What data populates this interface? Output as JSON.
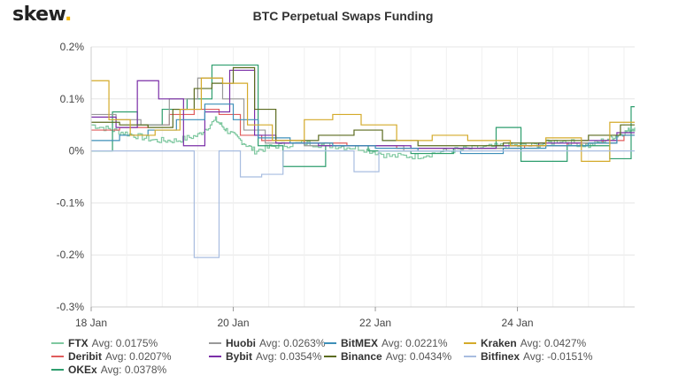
{
  "header": {
    "logo_text": "skew",
    "logo_dot": "."
  },
  "chart_data": {
    "type": "line",
    "title": "BTC Perpetual Swaps Funding",
    "x_axis": {
      "ticks": [
        "18 Jan",
        "20 Jan",
        "22 Jan",
        "24 Jan"
      ],
      "tick_days": [
        18,
        20,
        22,
        24
      ],
      "range_days": [
        18,
        25.65
      ]
    },
    "y_axis": {
      "ticks": [
        "0.2%",
        "0.1%",
        "0%",
        "-0.1%",
        "-0.2%",
        "-0.3%"
      ],
      "tick_values": [
        0.2,
        0.1,
        0,
        -0.1,
        -0.2,
        -0.3
      ],
      "ylim": [
        -0.3,
        0.2
      ],
      "unit": "%"
    },
    "grid": true,
    "legend_placement": "bottom",
    "series": [
      {
        "name": "FTX",
        "avg_label": "Avg: 0.0175%",
        "color": "#7fc8a0",
        "style": "noisy",
        "points": [
          [
            18,
            0.05
          ],
          [
            18.3,
            0.04
          ],
          [
            18.6,
            0.03
          ],
          [
            18.9,
            0.02
          ],
          [
            19.2,
            0.02
          ],
          [
            19.5,
            0.03
          ],
          [
            19.75,
            0.06
          ],
          [
            19.9,
            0.04
          ],
          [
            20.1,
            0.02
          ],
          [
            20.3,
            0.0
          ],
          [
            20.6,
            0.01
          ],
          [
            21,
            0.015
          ],
          [
            21.4,
            0.01
          ],
          [
            21.8,
            0.005
          ],
          [
            22.2,
            -0.01
          ],
          [
            22.6,
            -0.01
          ],
          [
            23,
            0.0
          ],
          [
            23.4,
            0.005
          ],
          [
            23.8,
            0.01
          ],
          [
            24.2,
            0.01
          ],
          [
            24.6,
            0.02
          ],
          [
            25,
            0.01
          ],
          [
            25.3,
            0.025
          ],
          [
            25.5,
            0.035
          ],
          [
            25.65,
            0.045
          ]
        ]
      },
      {
        "name": "Deribit",
        "avg_label": "Avg: 0.0207%",
        "color": "#e05c5c",
        "style": "step",
        "points": [
          [
            18,
            0.04
          ],
          [
            18.4,
            0.045
          ],
          [
            18.8,
            0.05
          ],
          [
            19.1,
            0.07
          ],
          [
            19.45,
            0.08
          ],
          [
            19.8,
            0.07
          ],
          [
            20.1,
            0.03
          ],
          [
            20.4,
            0.02
          ],
          [
            21,
            0.015
          ],
          [
            21.6,
            0.01
          ],
          [
            22.3,
            0.005
          ],
          [
            22.9,
            0.005
          ],
          [
            23.5,
            0.005
          ],
          [
            24.1,
            0.01
          ],
          [
            24.7,
            0.015
          ],
          [
            25.2,
            0.02
          ],
          [
            25.5,
            0.03
          ],
          [
            25.65,
            0.03
          ]
        ]
      },
      {
        "name": "OKEx",
        "avg_label": "Avg: 0.0378%",
        "color": "#2e9e6e",
        "style": "step",
        "points": [
          [
            18,
            0.0
          ],
          [
            18.3,
            0.075
          ],
          [
            18.65,
            0.05
          ],
          [
            19,
            0.08
          ],
          [
            19.35,
            0.1
          ],
          [
            19.7,
            0.165
          ],
          [
            20.05,
            0.165
          ],
          [
            20.35,
            0.01
          ],
          [
            20.7,
            -0.03
          ],
          [
            21.3,
            0.01
          ],
          [
            21.9,
            0.0
          ],
          [
            22.5,
            -0.005
          ],
          [
            23.1,
            0.005
          ],
          [
            23.7,
            0.045
          ],
          [
            24.05,
            -0.02
          ],
          [
            24.7,
            0.01
          ],
          [
            25.3,
            -0.015
          ],
          [
            25.6,
            0.085
          ],
          [
            25.65,
            0.085
          ]
        ]
      },
      {
        "name": "Huobi",
        "avg_label": "Avg: 0.0263%",
        "color": "#999999",
        "style": "step",
        "points": [
          [
            18,
            0.07
          ],
          [
            18.35,
            0.06
          ],
          [
            18.7,
            0.05
          ],
          [
            19.1,
            0.1
          ],
          [
            19.5,
            0.14
          ],
          [
            19.85,
            0.1
          ],
          [
            20.15,
            0.04
          ],
          [
            20.45,
            0.015
          ],
          [
            21,
            0.01
          ],
          [
            21.7,
            0.01
          ],
          [
            22.4,
            0.0
          ],
          [
            23,
            0.005
          ],
          [
            23.6,
            0.005
          ],
          [
            24.3,
            0.01
          ],
          [
            24.9,
            0.015
          ],
          [
            25.4,
            0.03
          ],
          [
            25.65,
            0.03
          ]
        ]
      },
      {
        "name": "Bybit",
        "avg_label": "Avg: 0.0354%",
        "color": "#7b2fa8",
        "style": "step",
        "points": [
          [
            18,
            0.065
          ],
          [
            18.35,
            0.045
          ],
          [
            18.65,
            0.135
          ],
          [
            18.95,
            0.1
          ],
          [
            19.3,
            0.01
          ],
          [
            19.6,
            0.075
          ],
          [
            19.95,
            0.155
          ],
          [
            20.3,
            0.03
          ],
          [
            20.6,
            0.015
          ],
          [
            21.2,
            0.01
          ],
          [
            21.9,
            0.01
          ],
          [
            22.5,
            0.005
          ],
          [
            23.1,
            0.005
          ],
          [
            23.7,
            0.01
          ],
          [
            24.3,
            0.015
          ],
          [
            24.9,
            0.02
          ],
          [
            25.4,
            0.035
          ],
          [
            25.65,
            0.035
          ]
        ]
      },
      {
        "name": "BitMEX",
        "avg_label": "Avg: 0.0221%",
        "color": "#3d8fb8",
        "style": "step",
        "points": [
          [
            18,
            0.02
          ],
          [
            18.4,
            0.03
          ],
          [
            18.8,
            0.04
          ],
          [
            19.2,
            0.06
          ],
          [
            19.6,
            0.09
          ],
          [
            20,
            0.06
          ],
          [
            20.35,
            0.025
          ],
          [
            20.8,
            0.015
          ],
          [
            21.4,
            0.01
          ],
          [
            22,
            0.005
          ],
          [
            22.6,
            0.0
          ],
          [
            23.2,
            -0.005
          ],
          [
            23.8,
            0.005
          ],
          [
            24.4,
            0.01
          ],
          [
            25,
            0.015
          ],
          [
            25.4,
            0.03
          ],
          [
            25.65,
            0.03
          ]
        ]
      },
      {
        "name": "Binance",
        "avg_label": "Avg: 0.0434%",
        "color": "#5b6b1f",
        "style": "step",
        "points": [
          [
            18,
            0.055
          ],
          [
            18.4,
            0.05
          ],
          [
            18.8,
            0.045
          ],
          [
            19.15,
            0.08
          ],
          [
            19.45,
            0.12
          ],
          [
            19.7,
            0.13
          ],
          [
            20.0,
            0.16
          ],
          [
            20.3,
            0.08
          ],
          [
            20.6,
            0.02
          ],
          [
            21.2,
            0.03
          ],
          [
            21.7,
            0.04
          ],
          [
            22.1,
            0.02
          ],
          [
            22.6,
            0.01
          ],
          [
            23.2,
            0.01
          ],
          [
            23.8,
            0.015
          ],
          [
            24.4,
            0.02
          ],
          [
            25,
            0.03
          ],
          [
            25.45,
            0.05
          ],
          [
            25.65,
            0.05
          ]
        ]
      },
      {
        "name": "Kraken",
        "avg_label": "Avg: 0.0427%",
        "color": "#d4aa2a",
        "style": "step",
        "points": [
          [
            18,
            0.135
          ],
          [
            18.25,
            0.06
          ],
          [
            18.55,
            0.03
          ],
          [
            18.9,
            0.04
          ],
          [
            19.25,
            0.08
          ],
          [
            19.55,
            0.14
          ],
          [
            19.85,
            0.13
          ],
          [
            20.2,
            0.05
          ],
          [
            20.55,
            0.02
          ],
          [
            21,
            0.06
          ],
          [
            21.4,
            0.07
          ],
          [
            21.8,
            0.05
          ],
          [
            22.3,
            0.02
          ],
          [
            22.8,
            0.03
          ],
          [
            23.3,
            0.02
          ],
          [
            23.9,
            0.01
          ],
          [
            24.4,
            0.025
          ],
          [
            24.9,
            -0.02
          ],
          [
            25.3,
            0.055
          ],
          [
            25.65,
            0.055
          ]
        ]
      },
      {
        "name": "Bitfinex",
        "avg_label": "Avg: -0.0151%",
        "color": "#a8bde0",
        "style": "step",
        "points": [
          [
            18,
            0.0
          ],
          [
            18.5,
            0.0
          ],
          [
            19,
            0.0
          ],
          [
            19.4,
            0.0
          ],
          [
            19.45,
            -0.205
          ],
          [
            19.75,
            -0.205
          ],
          [
            19.8,
            0.0
          ],
          [
            20.05,
            0.0
          ],
          [
            20.1,
            -0.05
          ],
          [
            20.4,
            -0.045
          ],
          [
            20.7,
            0.0
          ],
          [
            21.5,
            0.0
          ],
          [
            21.7,
            -0.04
          ],
          [
            22,
            -0.04
          ],
          [
            22.05,
            0.0
          ],
          [
            23,
            0.0
          ],
          [
            24,
            0.0
          ],
          [
            25,
            0.0
          ],
          [
            25.65,
            0.0
          ]
        ]
      }
    ]
  }
}
